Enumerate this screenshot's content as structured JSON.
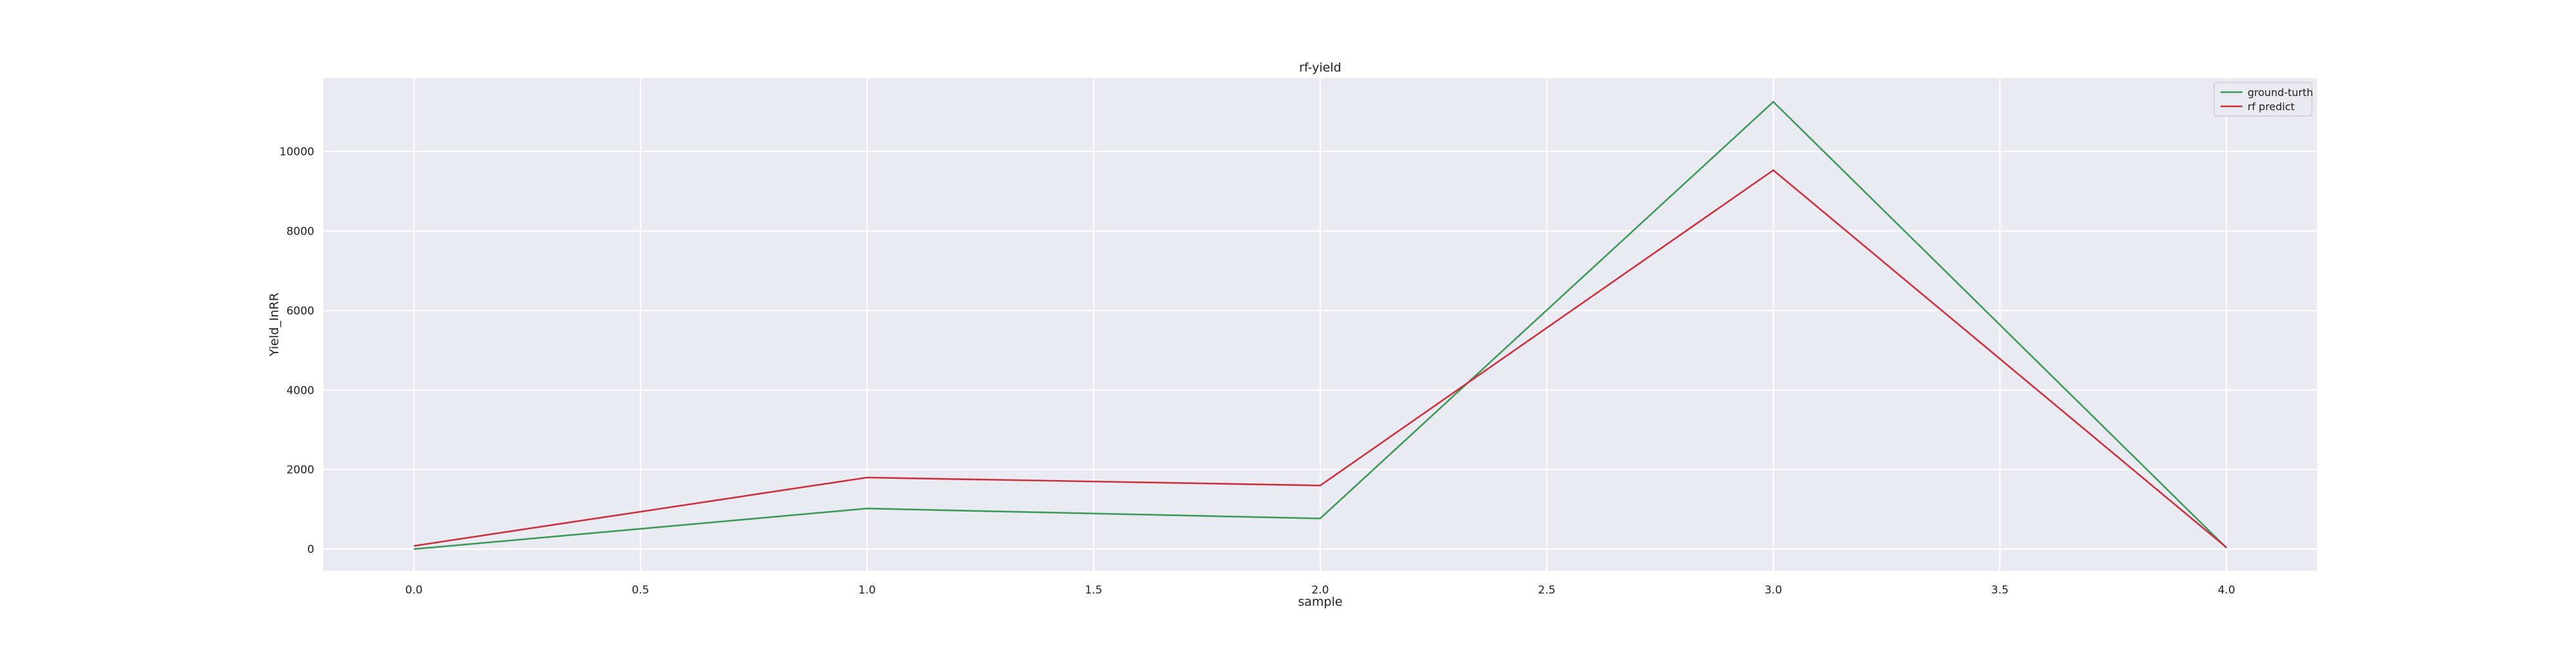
{
  "chart_data": {
    "type": "line",
    "title": "rf-yield",
    "xlabel": "sample",
    "ylabel": "Yield_InRR",
    "x": [
      0,
      1,
      2,
      3,
      4
    ],
    "xlim": [
      -0.2,
      4.2
    ],
    "ylim": [
      -550,
      11850
    ],
    "xticks": [
      0.0,
      0.5,
      1.0,
      1.5,
      2.0,
      2.5,
      3.0,
      3.5,
      4.0
    ],
    "xtick_labels": [
      "0.0",
      "0.5",
      "1.0",
      "1.5",
      "2.0",
      "2.5",
      "3.0",
      "3.5",
      "4.0"
    ],
    "yticks": [
      0,
      2000,
      4000,
      6000,
      8000,
      10000
    ],
    "ytick_labels": [
      "0",
      "2000",
      "4000",
      "6000",
      "8000",
      "10000"
    ],
    "grid": true,
    "legend_position": "top-right",
    "series": [
      {
        "name": "ground-turth",
        "color": "#3f9a5a",
        "values": [
          0,
          1020,
          770,
          11250,
          30
        ]
      },
      {
        "name": "rf predict",
        "color": "#c8323f",
        "values": [
          80,
          1800,
          1600,
          9530,
          40
        ]
      }
    ],
    "colors": {
      "plot_background": "#eaeaf2",
      "grid": "#ffffff"
    }
  }
}
